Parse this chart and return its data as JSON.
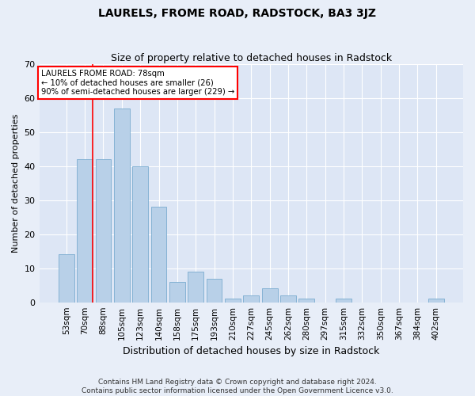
{
  "title": "LAURELS, FROME ROAD, RADSTOCK, BA3 3JZ",
  "subtitle": "Size of property relative to detached houses in Radstock",
  "xlabel": "Distribution of detached houses by size in Radstock",
  "ylabel": "Number of detached properties",
  "footer1": "Contains HM Land Registry data © Crown copyright and database right 2024.",
  "footer2": "Contains public sector information licensed under the Open Government Licence v3.0.",
  "categories": [
    "53sqm",
    "70sqm",
    "88sqm",
    "105sqm",
    "123sqm",
    "140sqm",
    "158sqm",
    "175sqm",
    "193sqm",
    "210sqm",
    "227sqm",
    "245sqm",
    "262sqm",
    "280sqm",
    "297sqm",
    "315sqm",
    "332sqm",
    "350sqm",
    "367sqm",
    "384sqm",
    "402sqm"
  ],
  "values": [
    14,
    42,
    42,
    57,
    40,
    28,
    6,
    9,
    7,
    1,
    2,
    4,
    2,
    1,
    0,
    1,
    0,
    0,
    0,
    0,
    1
  ],
  "bar_color": "#b8d0e8",
  "bar_edge_color": "#7aacd0",
  "fig_bg_color": "#e8eef8",
  "ax_bg_color": "#dde6f5",
  "grid_color": "#ffffff",
  "annotation_box_text1": "LAURELS FROME ROAD: 78sqm",
  "annotation_box_text2": "← 10% of detached houses are smaller (26)",
  "annotation_box_text3": "90% of semi-detached houses are larger (229) →",
  "redline_x": 1.42,
  "ylim": [
    0,
    70
  ],
  "yticks": [
    0,
    10,
    20,
    30,
    40,
    50,
    60,
    70
  ],
  "title_fontsize": 10,
  "subtitle_fontsize": 9,
  "ylabel_fontsize": 8,
  "xlabel_fontsize": 9,
  "tick_fontsize": 8,
  "footer_fontsize": 6.5
}
